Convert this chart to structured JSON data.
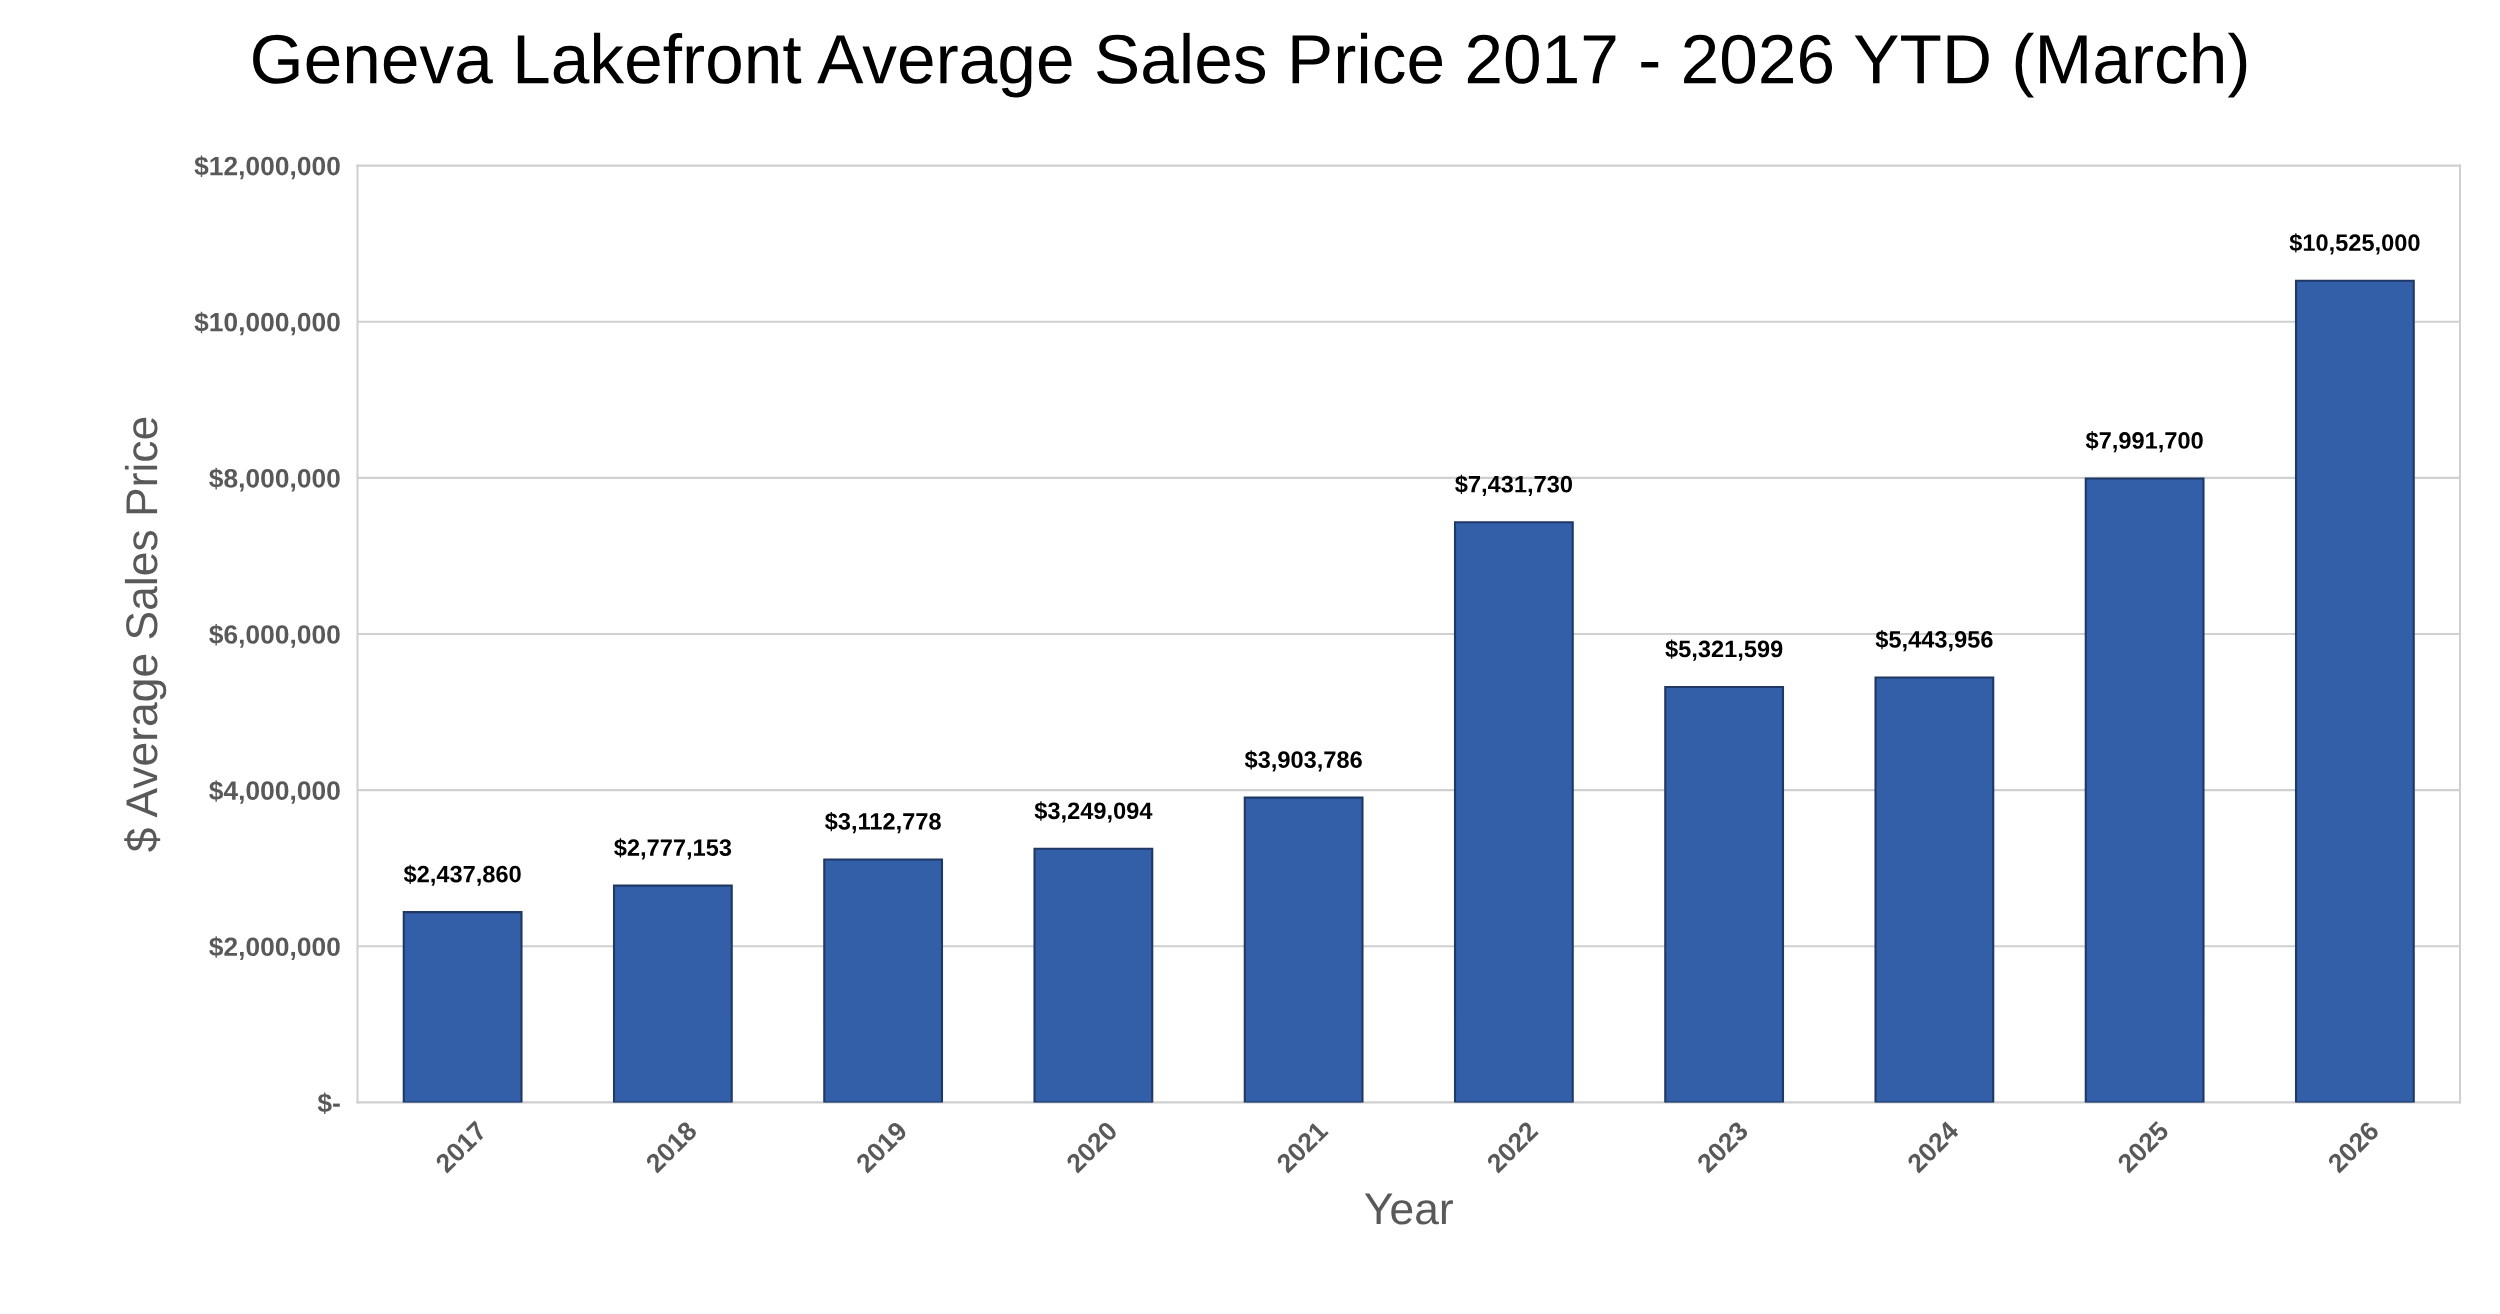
{
  "chart_data": {
    "type": "bar",
    "title": "Geneva Lakefront Average Sales Price 2017 - 2026 YTD (March)",
    "xlabel": "Year",
    "ylabel": "$ Average Sales Price",
    "categories": [
      "2017",
      "2018",
      "2019",
      "2020",
      "2021",
      "2022",
      "2023",
      "2024",
      "2025",
      "2026"
    ],
    "values": [
      2437860,
      2777153,
      3112778,
      3249094,
      3903786,
      7431730,
      5321599,
      5443956,
      7991700,
      10525000
    ],
    "value_labels": [
      "$2,437,860",
      "$2,777,153",
      "$3,112,778",
      "$3,249,094",
      "$3,903,786",
      "$7,431,730",
      "$5,321,599",
      "$5,443,956",
      "$7,991,700",
      "$10,525,000"
    ],
    "color": "#335ea8",
    "ylim": [
      0,
      12000000
    ],
    "yticks": [
      {
        "value": 0,
        "label": "$-"
      },
      {
        "value": 2000000,
        "label": "$2,000,000"
      },
      {
        "value": 4000000,
        "label": "$4,000,000"
      },
      {
        "value": 6000000,
        "label": "$6,000,000"
      },
      {
        "value": 8000000,
        "label": "$8,000,000"
      },
      {
        "value": 10000000,
        "label": "$10,000,000"
      },
      {
        "value": 12000000,
        "label": "$12,000,000"
      }
    ],
    "grid": "y",
    "legend": false
  }
}
